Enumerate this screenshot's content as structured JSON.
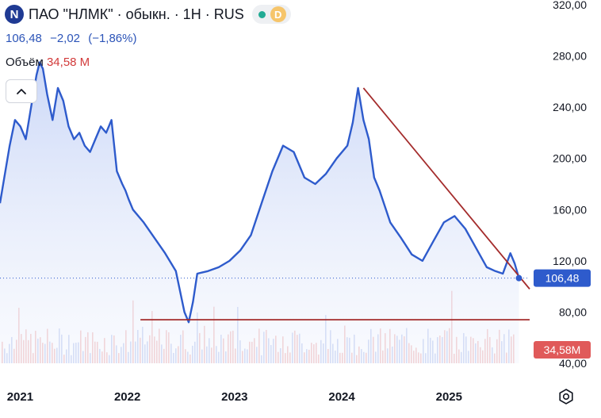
{
  "header": {
    "logo_letter": "N",
    "title": "ПАО \"НЛМК\" · обыкн. · 1H · RUS",
    "badge_letter": "D",
    "price": "106,48",
    "change": "−2,02",
    "change_pct": "(−1,86%)",
    "volume_label": "Объём",
    "volume_value": "34,58 M"
  },
  "colors": {
    "line": "#2e5bcc",
    "fill": "#dbe4fb",
    "trend": "#a42c2c",
    "volume_up": "#c7d3f2",
    "volume_down": "#f3c4c4",
    "price_tag": "#2e5bcc",
    "volume_tag": "#e05a5a"
  },
  "icons": {
    "collapse": "chevron-up-icon",
    "settings": "gear-icon"
  },
  "chart_data": {
    "type": "line",
    "x_ticks": [
      "2021",
      "2022",
      "2023",
      "2024",
      "2025"
    ],
    "y_ticks": [
      "40,00",
      "80,00",
      "120,00",
      "160,00",
      "200,00",
      "240,00",
      "280,00",
      "320,00"
    ],
    "ylim": [
      40,
      320
    ],
    "xlim": [
      2020.96,
      2025.9
    ],
    "last_price_label": "106,48",
    "last_volume_label": "34,58M",
    "series": [
      {
        "x": [
          2020.96,
          2021.0,
          2021.05,
          2021.1,
          2021.15,
          2021.2,
          2021.25,
          2021.3,
          2021.33,
          2021.36,
          2021.4,
          2021.45,
          2021.5,
          2021.55,
          2021.6,
          2021.65,
          2021.7,
          2021.75,
          2021.8,
          2021.85,
          2021.9,
          2021.95,
          2022.0,
          2022.05,
          2022.1,
          2022.13,
          2022.16,
          2022.2,
          2022.3,
          2022.4,
          2022.5,
          2022.6,
          2022.68,
          2022.72,
          2022.76,
          2022.8,
          2022.9,
          2023.0,
          2023.1,
          2023.2,
          2023.3,
          2023.4,
          2023.5,
          2023.6,
          2023.7,
          2023.8,
          2023.9,
          2024.0,
          2024.1,
          2024.2,
          2024.25,
          2024.3,
          2024.35,
          2024.4,
          2024.45,
          2024.5,
          2024.6,
          2024.7,
          2024.8,
          2024.9,
          2025.0,
          2025.1,
          2025.2,
          2025.3,
          2025.4,
          2025.5,
          2025.58,
          2025.65,
          2025.72,
          2025.76,
          2025.8
        ],
        "y": [
          165,
          185,
          210,
          230,
          225,
          215,
          240,
          265,
          275,
          270,
          250,
          230,
          255,
          245,
          225,
          215,
          220,
          210,
          205,
          215,
          225,
          220,
          230,
          190,
          180,
          175,
          168,
          160,
          150,
          138,
          126,
          112,
          80,
          72,
          88,
          110,
          112,
          115,
          120,
          128,
          140,
          165,
          190,
          210,
          205,
          185,
          180,
          188,
          200,
          210,
          228,
          255,
          230,
          215,
          185,
          175,
          150,
          138,
          125,
          120,
          135,
          150,
          155,
          145,
          130,
          115,
          112,
          110,
          126,
          118,
          106.48
        ]
      }
    ],
    "trend_lines": [
      {
        "x": [
          2024.35,
          2025.9
        ],
        "y": [
          255,
          98
        ]
      },
      {
        "x": [
          2022.27,
          2025.9
        ],
        "y": [
          74,
          74
        ]
      }
    ],
    "grid": false,
    "legend": "none"
  }
}
